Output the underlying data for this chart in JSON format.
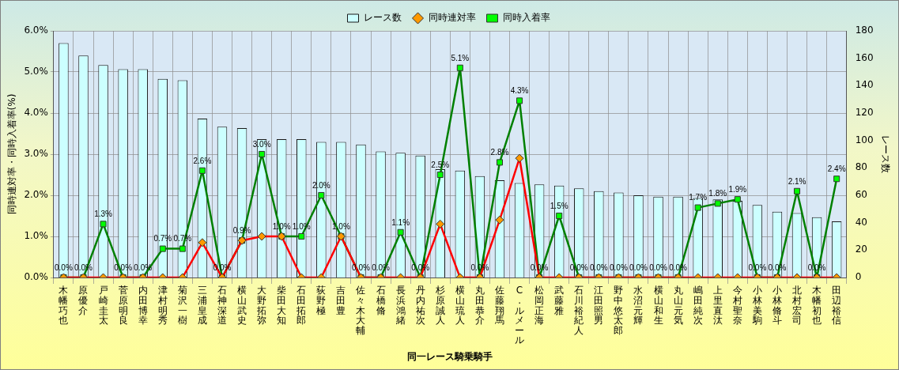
{
  "chart_data": {
    "type": "bar",
    "xlabel": "同一レース騎乗騎手",
    "ylabel": "同時連対率・同時入着率(%)",
    "y2label": "レース数",
    "categories": [
      "木幡巧也",
      "原優介",
      "戸崎圭太",
      "菅原明良",
      "内田博幸",
      "津村明秀",
      "菊沢一樹",
      "三浦皇成",
      "石神深道",
      "横山武史",
      "大野拓弥",
      "柴田大知",
      "石田拓郎",
      "荻野極",
      "吉田豊",
      "佐々木大輔",
      "石橋脩",
      "長浜鴻緒",
      "丹内祐次",
      "杉原誠人",
      "横山琉人",
      "丸田恭介",
      "佐藤翔馬",
      "C.ルメール",
      "松岡正海",
      "武藤雅",
      "石川裕紀人",
      "江田照男",
      "野中悠太郎",
      "水沼元輝",
      "横山和生",
      "丸山元気",
      "嶋田純次",
      "上里直汰",
      "今村聖奈",
      "小林美駒",
      "小林脩斗",
      "北村宏司",
      "木幡初也",
      "田辺裕信"
    ],
    "series": [
      {
        "name": "レース数",
        "type": "bar",
        "axis": "y2",
        "color": "#ccffff",
        "values": [
          171,
          162,
          155,
          152,
          152,
          145,
          144,
          116,
          110,
          109,
          101,
          101,
          101,
          99,
          99,
          97,
          92,
          91,
          89,
          79,
          78,
          74,
          71,
          69,
          68,
          67,
          65,
          63,
          62,
          60,
          59,
          59,
          58,
          57,
          56,
          53,
          48,
          47,
          44,
          41
        ]
      },
      {
        "name": "同時連対率",
        "type": "line",
        "color": "#ff0000",
        "marker": "diamond",
        "values": [
          0,
          0,
          0,
          0,
          0,
          0,
          0,
          0.85,
          0,
          0.9,
          1.0,
          1.0,
          0,
          0,
          1.0,
          0,
          0,
          0,
          0,
          1.3,
          0,
          0,
          1.4,
          2.9,
          0,
          0,
          0,
          0,
          0,
          0,
          0,
          0,
          0,
          0,
          0,
          0,
          0,
          0,
          0,
          0
        ]
      },
      {
        "name": "同時入着率",
        "type": "line",
        "color": "#008000",
        "marker": "square",
        "values": [
          0,
          0,
          1.3,
          0,
          0,
          0.7,
          0.7,
          2.6,
          0,
          0.9,
          3.0,
          1.0,
          1.0,
          2.0,
          1.0,
          0,
          0,
          1.1,
          0,
          2.5,
          5.1,
          0,
          2.8,
          4.3,
          0,
          1.5,
          0,
          0,
          0,
          0,
          0,
          0,
          1.7,
          1.8,
          1.9,
          0,
          0,
          2.1,
          0,
          2.4
        ],
        "value_labels": [
          "0.0%",
          "0.0%",
          "1.3%",
          "0.0%",
          "0.0%",
          "0.7%",
          "0.7%",
          "2.6%",
          "0.0%",
          "0.9%",
          "3.0%",
          "1.0%",
          "1.0%",
          "2.0%",
          "1.0%",
          "0.0%",
          "0.0%",
          "1.1%",
          "0.0%",
          "2.5%",
          "5.1%",
          "0.0%",
          "2.8%",
          "4.3%",
          "0.0%",
          "1.5%",
          "0.0%",
          "0.0%",
          "0.0%",
          "0.0%",
          "0.0%",
          "0.0%",
          "1.7%",
          "1.8%",
          "1.9%",
          "0.0%",
          "0.0%",
          "2.1%",
          "0.0%",
          "2.4%"
        ]
      }
    ],
    "ylim": [
      0,
      6
    ],
    "yticks": [
      {
        "value": 0,
        "label": "0.0%"
      },
      {
        "value": 1,
        "label": "1.0%"
      },
      {
        "value": 2,
        "label": "2.0%"
      },
      {
        "value": 3,
        "label": "3.0%"
      },
      {
        "value": 4,
        "label": "4.0%"
      },
      {
        "value": 5,
        "label": "5.0%"
      },
      {
        "value": 6,
        "label": "6.0%"
      }
    ],
    "y2lim": [
      0,
      180
    ],
    "y2ticks": [
      0,
      20,
      40,
      60,
      80,
      100,
      120,
      140,
      160,
      180
    ],
    "grid": true,
    "legend": "top"
  }
}
